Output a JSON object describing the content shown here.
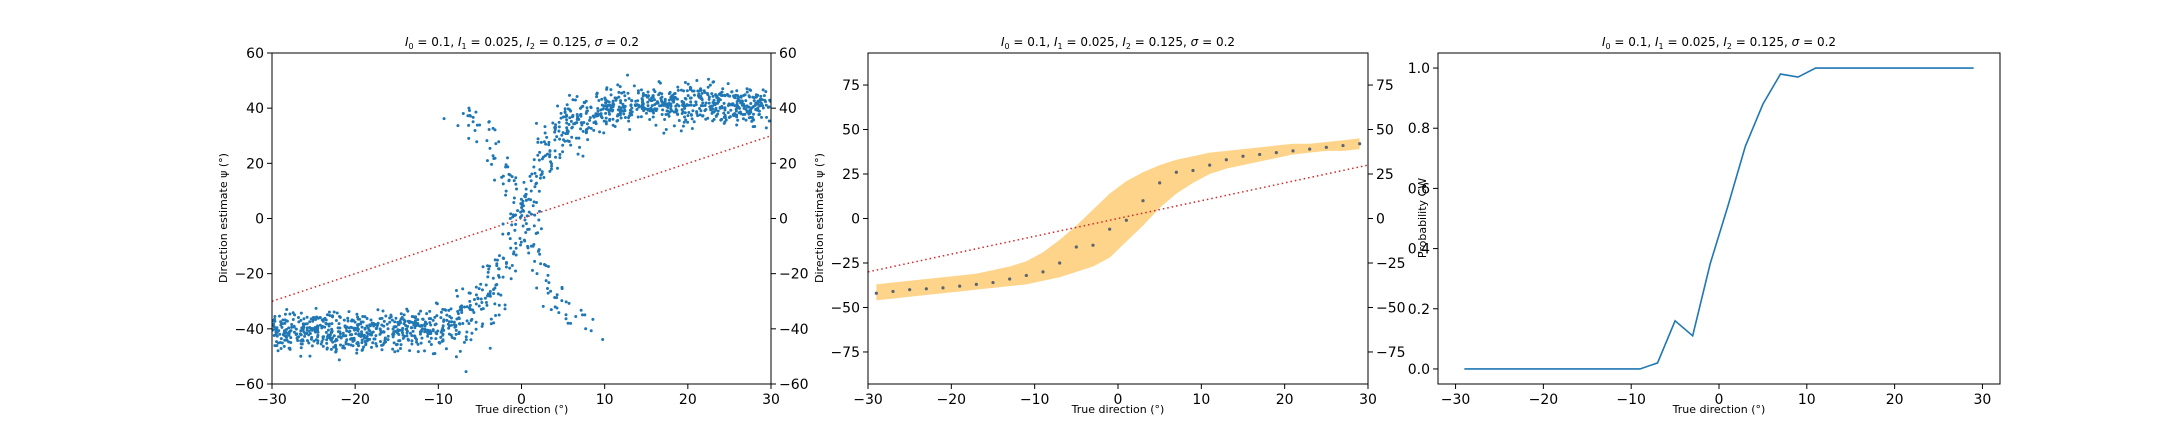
{
  "chart_data": [
    {
      "type": "scatter",
      "title": "I0 = 0.1, I1 = 0.025, I2 = 0.125, σ = 0.2",
      "title_parts": {
        "i0": "0.1",
        "i1": "0.025",
        "i2": "0.125",
        "sigma": "0.2"
      },
      "xlabel": "True direction (°)",
      "ylabel": "Direction estimate ψ (°)",
      "xlim": [
        -30,
        30
      ],
      "ylim": [
        -60,
        60
      ],
      "xticks": [
        "−30",
        "−20",
        "−10",
        "0",
        "10",
        "20",
        "30"
      ],
      "yticks": [
        "−60",
        "−40",
        "−20",
        "0",
        "20",
        "40",
        "60"
      ],
      "right_yticks": [
        "−60",
        "−40",
        "−20",
        "0",
        "20",
        "40",
        "60"
      ],
      "point_color": "#1f77b4",
      "reference_line": {
        "style": "dotted",
        "color": "#d62728",
        "x": [
          -30,
          30
        ],
        "y": [
          -30,
          30
        ]
      },
      "scatter_model": {
        "low": -41,
        "high": 41,
        "center": 0,
        "width": 5.5,
        "noise": 3.5,
        "n": 1600
      },
      "grid": false,
      "legend": "none"
    },
    {
      "type": "area",
      "title": "I0 = 0.1, I1 = 0.025, I2 = 0.125, σ = 0.2",
      "title_parts": {
        "i0": "0.1",
        "i1": "0.025",
        "i2": "0.125",
        "sigma": "0.2"
      },
      "xlabel": "True direction (°)",
      "ylabel": "Direction estimate ψ (°)",
      "xlim": [
        -30,
        30
      ],
      "ylim": [
        -93,
        93
      ],
      "xticks": [
        "−30",
        "−20",
        "−10",
        "0",
        "10",
        "20",
        "30"
      ],
      "yticks": [
        "−75",
        "−50",
        "−25",
        "0",
        "25",
        "50",
        "75"
      ],
      "right_yticks": [
        "−75",
        "−50",
        "−25",
        "0",
        "25",
        "50",
        "75"
      ],
      "band_color": "#fcc96b",
      "point_color": "#5b6470",
      "x": [
        -29,
        -27,
        -25,
        -23,
        -21,
        -19,
        -17,
        -15,
        -13,
        -11,
        -9,
        -7,
        -5,
        -3,
        -1,
        1,
        3,
        5,
        7,
        9,
        11,
        13,
        15,
        17,
        19,
        21,
        23,
        25,
        27,
        29
      ],
      "mean": [
        -42,
        -41,
        -40,
        -39.5,
        -39,
        -38,
        -37,
        -36,
        -34,
        -32,
        -30,
        -25,
        -16,
        -15,
        -6,
        -1,
        10,
        20,
        26,
        27,
        30,
        33,
        35,
        36,
        37,
        38,
        39,
        40,
        41,
        42
      ],
      "lower": [
        -46,
        -45,
        -44,
        -43,
        -42,
        -41,
        -40,
        -39,
        -38,
        -37,
        -35,
        -33,
        -30,
        -27,
        -22,
        -13,
        -4,
        6,
        14,
        20,
        25,
        28,
        30,
        32,
        34,
        36,
        37,
        38,
        38,
        39
      ],
      "upper": [
        -37,
        -36,
        -35,
        -34,
        -33,
        -32,
        -31,
        -29,
        -27,
        -24,
        -19,
        -12,
        -4,
        5,
        14,
        21,
        26,
        30,
        33,
        35,
        37,
        38,
        39,
        40,
        41,
        42,
        42,
        43,
        44,
        45
      ],
      "reference_line": {
        "style": "dotted",
        "color": "#d62728",
        "x": [
          -30,
          30
        ],
        "y": [
          -30,
          30
        ]
      },
      "grid": false,
      "legend": "none"
    },
    {
      "type": "line",
      "title": "I0 = 0.1, I1 = 0.025, I2 = 0.125, σ = 0.2",
      "title_parts": {
        "i0": "0.1",
        "i1": "0.025",
        "i2": "0.125",
        "sigma": "0.2"
      },
      "xlabel": "True direction (°)",
      "ylabel": "Probability CW",
      "xlim": [
        -32,
        32
      ],
      "ylim": [
        -0.05,
        1.05
      ],
      "xticks": [
        "−30",
        "−20",
        "−10",
        "0",
        "10",
        "20",
        "30"
      ],
      "yticks": [
        "0.0",
        "0.2",
        "0.4",
        "0.6",
        "0.8",
        "1.0"
      ],
      "line_color": "#1f77b4",
      "x": [
        -29,
        -27,
        -25,
        -23,
        -21,
        -19,
        -17,
        -15,
        -13,
        -11,
        -9,
        -7,
        -5,
        -3,
        -1,
        1,
        3,
        5,
        7,
        9,
        11,
        13,
        15,
        17,
        19,
        21,
        23,
        25,
        27,
        29
      ],
      "y": [
        0,
        0,
        0,
        0,
        0,
        0,
        0,
        0,
        0,
        0,
        0,
        0.02,
        0.16,
        0.11,
        0.35,
        0.54,
        0.74,
        0.88,
        0.98,
        0.97,
        1,
        1,
        1,
        1,
        1,
        1,
        1,
        1,
        1,
        1
      ],
      "grid": false,
      "legend": "none"
    }
  ]
}
